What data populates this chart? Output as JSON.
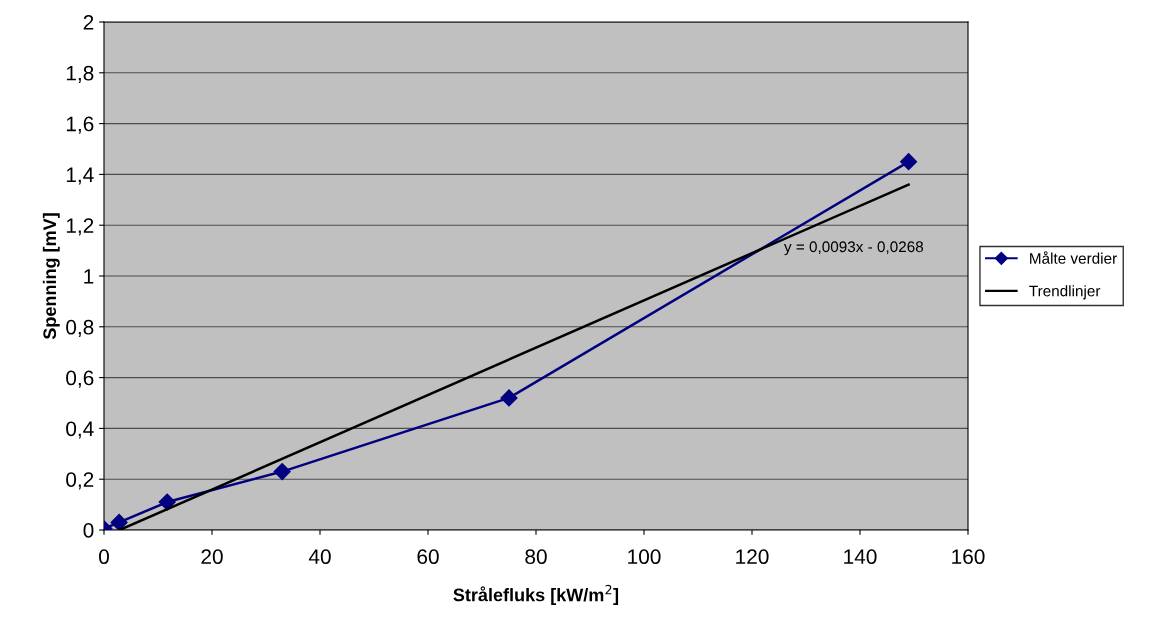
{
  "chart_data": {
    "type": "line",
    "xlabel": "Strålefluks [kW/m$^{2}$]",
    "ylabel": "Spenning [mV]",
    "series": [
      {
        "name": "Målte verdier",
        "color": "#000080",
        "marker": "diamond",
        "x": [
          0,
          2.8,
          11.7,
          33,
          75,
          149
        ],
        "values": [
          0.005,
          0.03,
          0.11,
          0.23,
          0.52,
          1.45
        ]
      },
      {
        "name": "Trendlinjer",
        "color": "#000000",
        "marker": "none",
        "x": [
          2.9,
          149
        ],
        "values": [
          0,
          1.36
        ]
      }
    ],
    "annotations": [
      "y = 0,0093x - 0,0268"
    ],
    "xlim": [
      0,
      160
    ],
    "xticks": [
      0,
      20,
      40,
      60,
      80,
      100,
      120,
      140,
      160
    ],
    "ylim": [
      0,
      2
    ],
    "yticks": [
      0,
      {
        "value": 0.2,
        "label": "0,2"
      },
      {
        "value": 0.4,
        "label": "0,4"
      },
      {
        "value": 0.6,
        "label": "0,6"
      },
      {
        "value": 0.8,
        "label": "0,8"
      },
      1,
      {
        "value": 1.2,
        "label": "1,2"
      },
      {
        "value": 1.4,
        "label": "1,4"
      },
      {
        "value": 1.6,
        "label": "1,6"
      },
      {
        "value": 1.8,
        "label": "1,8"
      },
      2
    ],
    "grid": "y",
    "legend": "right"
  }
}
